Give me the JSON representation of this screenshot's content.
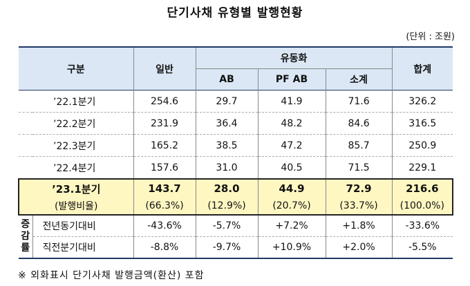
{
  "title": "단기사채 유형별 발행현황",
  "unit": "(단위 : 조원)",
  "headers": {
    "category": "구분",
    "general": "일반",
    "liquidity": "유동화",
    "ab": "AB",
    "pfab": "PF  AB",
    "subtotal": "소계",
    "total": "합계"
  },
  "rows": [
    {
      "label": "’22.1분기",
      "general": "254.6",
      "ab": "29.7",
      "pfab": "41.9",
      "subtotal": "71.6",
      "total": "326.2"
    },
    {
      "label": "’22.2분기",
      "general": "231.9",
      "ab": "36.4",
      "pfab": "48.2",
      "subtotal": "84.6",
      "total": "316.5"
    },
    {
      "label": "’22.3분기",
      "general": "165.2",
      "ab": "38.5",
      "pfab": "47.2",
      "subtotal": "85.7",
      "total": "250.9"
    },
    {
      "label": "’22.4분기",
      "general": "157.6",
      "ab": "31.0",
      "pfab": "40.5",
      "subtotal": "71.5",
      "total": "229.1"
    }
  ],
  "highlight": {
    "label": "’23.1분기",
    "general": "143.7",
    "ab": "28.0",
    "pfab": "44.9",
    "subtotal": "72.9",
    "total": "216.6",
    "ratio_label": "(발행비율)",
    "ratio_general": "(66.3%)",
    "ratio_ab": "(12.9%)",
    "ratio_pfab": "(20.7%)",
    "ratio_subtotal": "(33.7%)",
    "ratio_total": "(100.0%)"
  },
  "growth": {
    "label": "증\n감\n률",
    "yoy": {
      "label": "전년동기대비",
      "general": "-43.6%",
      "ab": "-5.7%",
      "pfab": "+7.2%",
      "subtotal": "+1.8%",
      "total": "-33.6%"
    },
    "qoq": {
      "label": "직전분기대비",
      "general": "-8.8%",
      "ab": "-9.7%",
      "pfab": "+10.9%",
      "subtotal": "+2.0%",
      "total": "-5.5%"
    }
  },
  "note": "※ 외화표시 단기사채 발행금액(환산) 포함"
}
